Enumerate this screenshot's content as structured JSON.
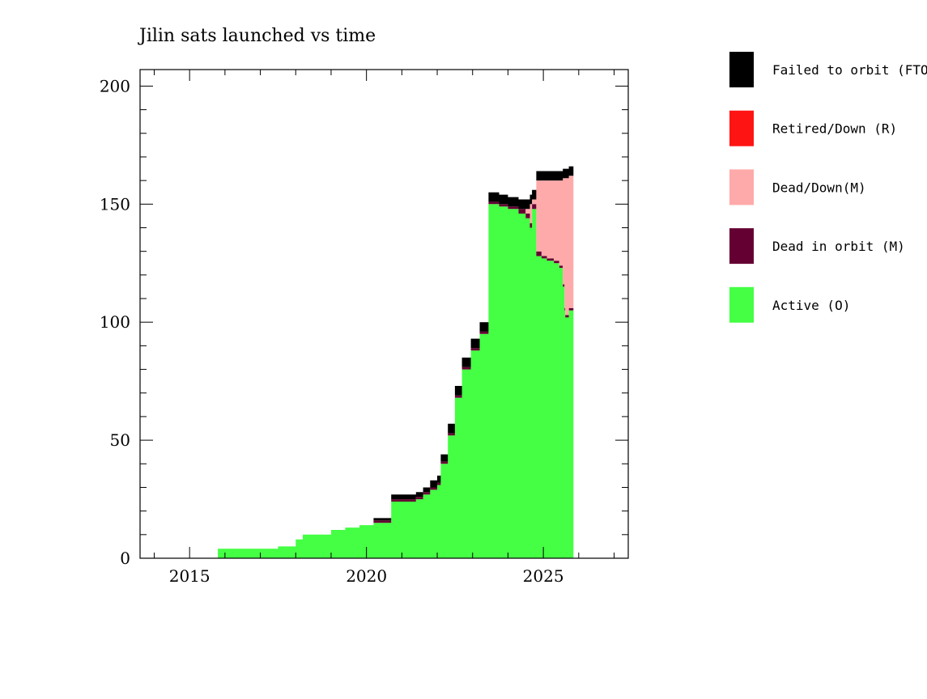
{
  "chart_data": {
    "type": "area",
    "title": "Jilin sats launched vs time",
    "xlabel": "",
    "ylabel": "",
    "xlim": [
      2013.6,
      2027.4
    ],
    "ylim": [
      0,
      207
    ],
    "x_ticks": [
      2015,
      2020,
      2025
    ],
    "y_ticks": [
      0,
      50,
      100,
      150,
      200
    ],
    "grid": false,
    "legend_position": "right",
    "x": [
      2015.75,
      2015.8,
      2017.5,
      2018.0,
      2018.2,
      2019.0,
      2019.4,
      2019.8,
      2020.2,
      2020.7,
      2021.4,
      2021.6,
      2021.8,
      2022.0,
      2022.1,
      2022.3,
      2022.5,
      2022.7,
      2022.95,
      2023.2,
      2023.45,
      2023.75,
      2024.0,
      2024.3,
      2024.5,
      2024.62,
      2024.68,
      2024.8,
      2024.95,
      2025.1,
      2025.3,
      2025.45,
      2025.55,
      2025.6,
      2025.62,
      2025.72,
      2025.85
    ],
    "series": [
      {
        "name": "Active (O)",
        "values": [
          0,
          4,
          5,
          8,
          10,
          12,
          13,
          14,
          15,
          24,
          25,
          27,
          29,
          31,
          40,
          52,
          68,
          80,
          88,
          95,
          150,
          149,
          148,
          146,
          144,
          140,
          148,
          128,
          127,
          126,
          125,
          123,
          115,
          105,
          102,
          105,
          103
        ]
      },
      {
        "name": "Dead in orbit (M)",
        "values": [
          0,
          0,
          0,
          0,
          0,
          0,
          0,
          0,
          1,
          1,
          1,
          1,
          1,
          1,
          1,
          1,
          1,
          1,
          1,
          1,
          1,
          1,
          1,
          2,
          2,
          2,
          2,
          2,
          1,
          1,
          1,
          1,
          1,
          1,
          1,
          1,
          1
        ]
      },
      {
        "name": "Dead/Down(M)",
        "values": [
          0,
          0,
          0,
          0,
          0,
          0,
          0,
          0,
          0,
          0,
          0,
          0,
          0,
          0,
          0,
          0,
          0,
          0,
          0,
          0,
          0,
          0,
          0,
          0,
          2,
          8,
          2,
          30,
          32,
          33,
          34,
          36,
          45,
          55,
          58,
          56,
          58
        ]
      },
      {
        "name": "Retired/Down (R)",
        "values": [
          0,
          0,
          0,
          0,
          0,
          0,
          0,
          0,
          0,
          0,
          0,
          0,
          0,
          0,
          0,
          0,
          0,
          0,
          0,
          0,
          0,
          0,
          0,
          0,
          0,
          0,
          0,
          0,
          0,
          0,
          0,
          0,
          0,
          0,
          0,
          0,
          0
        ]
      },
      {
        "name": "Failed to orbit (FTO)",
        "values": [
          0,
          0,
          0,
          0,
          0,
          0,
          0,
          0,
          1,
          2,
          2,
          2,
          3,
          3,
          3,
          4,
          4,
          4,
          4,
          4,
          4,
          4,
          4,
          4,
          4,
          4,
          4,
          4,
          4,
          4,
          4,
          4,
          4,
          4,
          4,
          4,
          4
        ]
      }
    ],
    "end_x": 2025.85,
    "legend": [
      {
        "label": "Failed to orbit (FTO)",
        "color": "#000000"
      },
      {
        "label": "Retired/Down (R)",
        "color": "#ff1414"
      },
      {
        "label": "Dead/Down(M)",
        "color": "#ffaaaa"
      },
      {
        "label": "Dead in orbit (M)",
        "color": "#650032"
      },
      {
        "label": "Active (O)",
        "color": "#44ff44"
      }
    ],
    "colors": {
      "Active (O)": "#44ff44",
      "Dead in orbit (M)": "#650032",
      "Dead/Down(M)": "#ffaaaa",
      "Retired/Down (R)": "#ff1414",
      "Failed to orbit (FTO)": "#000000"
    }
  }
}
